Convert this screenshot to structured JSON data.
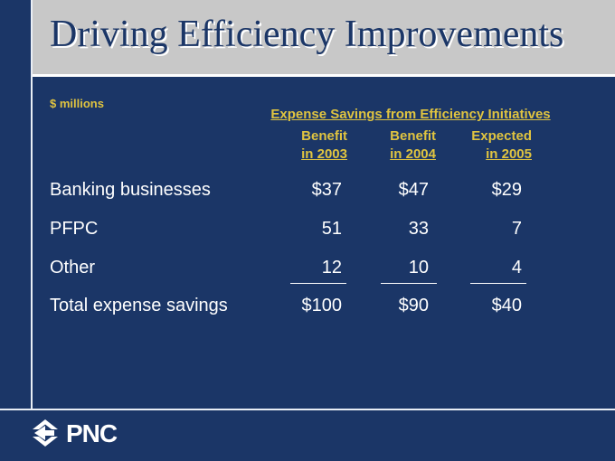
{
  "slide": {
    "title": "Driving Efficiency Improvements",
    "units": "$ millions",
    "section_title": "Expense Savings from Efficiency Initiatives"
  },
  "table": {
    "columns": [
      {
        "line1": "Benefit",
        "line2": "in 2003"
      },
      {
        "line1": "Benefit",
        "line2": "in 2004"
      },
      {
        "line1": "Expected",
        "line2": "in 2005"
      }
    ],
    "rows": [
      {
        "label": "Banking businesses",
        "values": [
          "$37",
          "$47",
          "$29"
        ]
      },
      {
        "label": "PFPC",
        "values": [
          "51",
          "33",
          "7"
        ]
      },
      {
        "label": "Other",
        "values": [
          "12",
          "10",
          "4"
        ]
      },
      {
        "label": "Total expense savings",
        "values": [
          "$100",
          "$90",
          "$40"
        ]
      }
    ]
  },
  "footer": {
    "logo_text": "PNC",
    "logo_icon": "pnc-arrow-logo-icon"
  },
  "colors": {
    "background": "#1b3667",
    "title_band": "#c8c8c8",
    "accent_gold": "#e0c440",
    "text": "#ffffff"
  }
}
